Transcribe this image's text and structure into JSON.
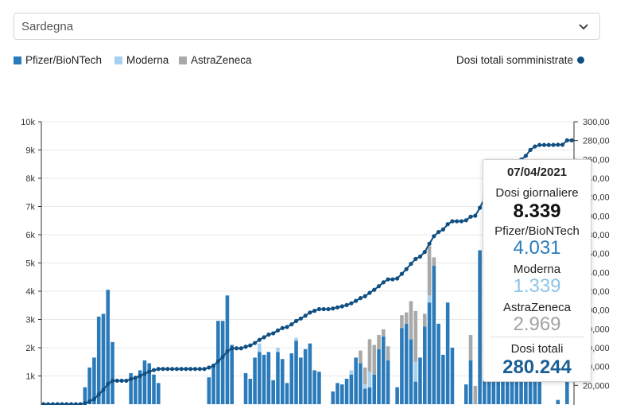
{
  "region_select": {
    "value": "Sardegna"
  },
  "legend": {
    "pfizer": "Pfizer/BioNTech",
    "moderna": "Moderna",
    "astrazeneca": "AstraZeneca",
    "total": "Dosi totali somministrate"
  },
  "colors": {
    "pfizer": "#2b7bba",
    "moderna": "#a6d2ef",
    "astrazeneca": "#a9a9a9",
    "total_line": "#0f4f82",
    "grid": "#e8e8e8"
  },
  "tooltip": {
    "date": "07/04/2021",
    "daily_label": "Dosi giornaliere",
    "daily_value": "8.339",
    "pfizer_label": "Pfizer/BioNTech",
    "pfizer_value": "4.031",
    "moderna_label": "Moderna",
    "moderna_value": "1.339",
    "astrazeneca_label": "AstraZeneca",
    "astrazeneca_value": "2.969",
    "total_label": "Dosi totali",
    "total_value": "280.244"
  },
  "chart_data": {
    "type": "bar",
    "left_axis": {
      "ticks": [
        "10k",
        "9k",
        "8k",
        "7k",
        "6k",
        "5k",
        "4k",
        "3k",
        "2k",
        "1k"
      ],
      "ylim": [
        0,
        10000
      ]
    },
    "right_axis": {
      "ticks": [
        "300,00",
        "280,00",
        "260,00",
        "240,00",
        "220,00",
        "200,00",
        "180,00",
        "160,00",
        "140,00",
        "120,00",
        "100,00",
        "80,000",
        "60,000",
        "40,000",
        "20,000"
      ],
      "ylim": [
        0,
        300000
      ]
    },
    "pfizer": [
      0,
      0,
      0,
      0,
      0,
      0,
      0,
      0,
      0,
      600,
      1300,
      1650,
      3100,
      3200,
      4050,
      2200,
      0,
      0,
      0,
      1100,
      950,
      1200,
      1550,
      1450,
      1050,
      750,
      0,
      0,
      0,
      0,
      0,
      0,
      0,
      0,
      0,
      0,
      950,
      1350,
      2950,
      2950,
      3850,
      2100,
      0,
      0,
      1100,
      900,
      1650,
      1850,
      1750,
      1850,
      850,
      1850,
      1600,
      750,
      1800,
      2250,
      1650,
      1950,
      2150,
      1200,
      1150,
      0,
      0,
      450,
      750,
      700,
      900,
      1050,
      1650,
      1450,
      550,
      600,
      1050,
      1950,
      2400,
      1550,
      0,
      600,
      2700,
      2850,
      2300,
      800,
      1650,
      2750,
      3600,
      4900,
      2850,
      1750,
      3600,
      2000,
      0,
      0,
      700,
      1550,
      0,
      5450,
      6450,
      6950,
      4700,
      3150,
      1300,
      2300,
      3500,
      2100,
      1900,
      2650,
      4050,
      2350,
      1050,
      0,
      0,
      0,
      150,
      0,
      3000,
      0
    ],
    "moderna": [
      0,
      0,
      0,
      0,
      0,
      0,
      0,
      0,
      0,
      0,
      0,
      0,
      0,
      0,
      0,
      0,
      0,
      0,
      0,
      0,
      0,
      0,
      0,
      0,
      0,
      0,
      0,
      0,
      0,
      0,
      0,
      0,
      0,
      0,
      0,
      0,
      0,
      0,
      0,
      0,
      0,
      0,
      0,
      0,
      0,
      0,
      0,
      300,
      0,
      0,
      0,
      150,
      0,
      0,
      0,
      100,
      0,
      0,
      0,
      0,
      0,
      0,
      0,
      0,
      0,
      0,
      0,
      150,
      0,
      0,
      150,
      550,
      0,
      0,
      0,
      0,
      0,
      0,
      0,
      0,
      0,
      700,
      0,
      0,
      250,
      0,
      0,
      0,
      0,
      0,
      0,
      0,
      0,
      0,
      0,
      0,
      0,
      100,
      0,
      300,
      0,
      0,
      200,
      0,
      0,
      0,
      0,
      0,
      0,
      0,
      0,
      0,
      0,
      0,
      0,
      0,
      0,
      0
    ],
    "astrazeneca": [
      0,
      0,
      0,
      0,
      0,
      0,
      0,
      0,
      0,
      0,
      0,
      0,
      0,
      0,
      0,
      0,
      0,
      0,
      0,
      0,
      0,
      0,
      0,
      0,
      0,
      0,
      0,
      0,
      0,
      0,
      0,
      0,
      0,
      0,
      0,
      0,
      0,
      0,
      0,
      0,
      0,
      0,
      0,
      0,
      0,
      0,
      0,
      0,
      0,
      0,
      0,
      0,
      0,
      0,
      0,
      0,
      0,
      0,
      0,
      0,
      0,
      0,
      0,
      0,
      0,
      0,
      0,
      0,
      0,
      450,
      600,
      1150,
      1050,
      500,
      250,
      500,
      0,
      0,
      450,
      400,
      1350,
      1800,
      0,
      450,
      1750,
      300,
      0,
      0,
      0,
      0,
      0,
      0,
      0,
      900,
      650,
      0,
      0,
      0,
      0,
      0,
      0,
      0,
      0,
      0,
      0,
      0,
      0,
      0,
      0,
      0,
      0,
      0,
      0,
      0,
      0,
      0,
      0,
      0,
      0
    ],
    "totale_dosi": {
      "x_range": [
        0,
        118
      ],
      "range": [
        0,
        280244
      ]
    }
  }
}
